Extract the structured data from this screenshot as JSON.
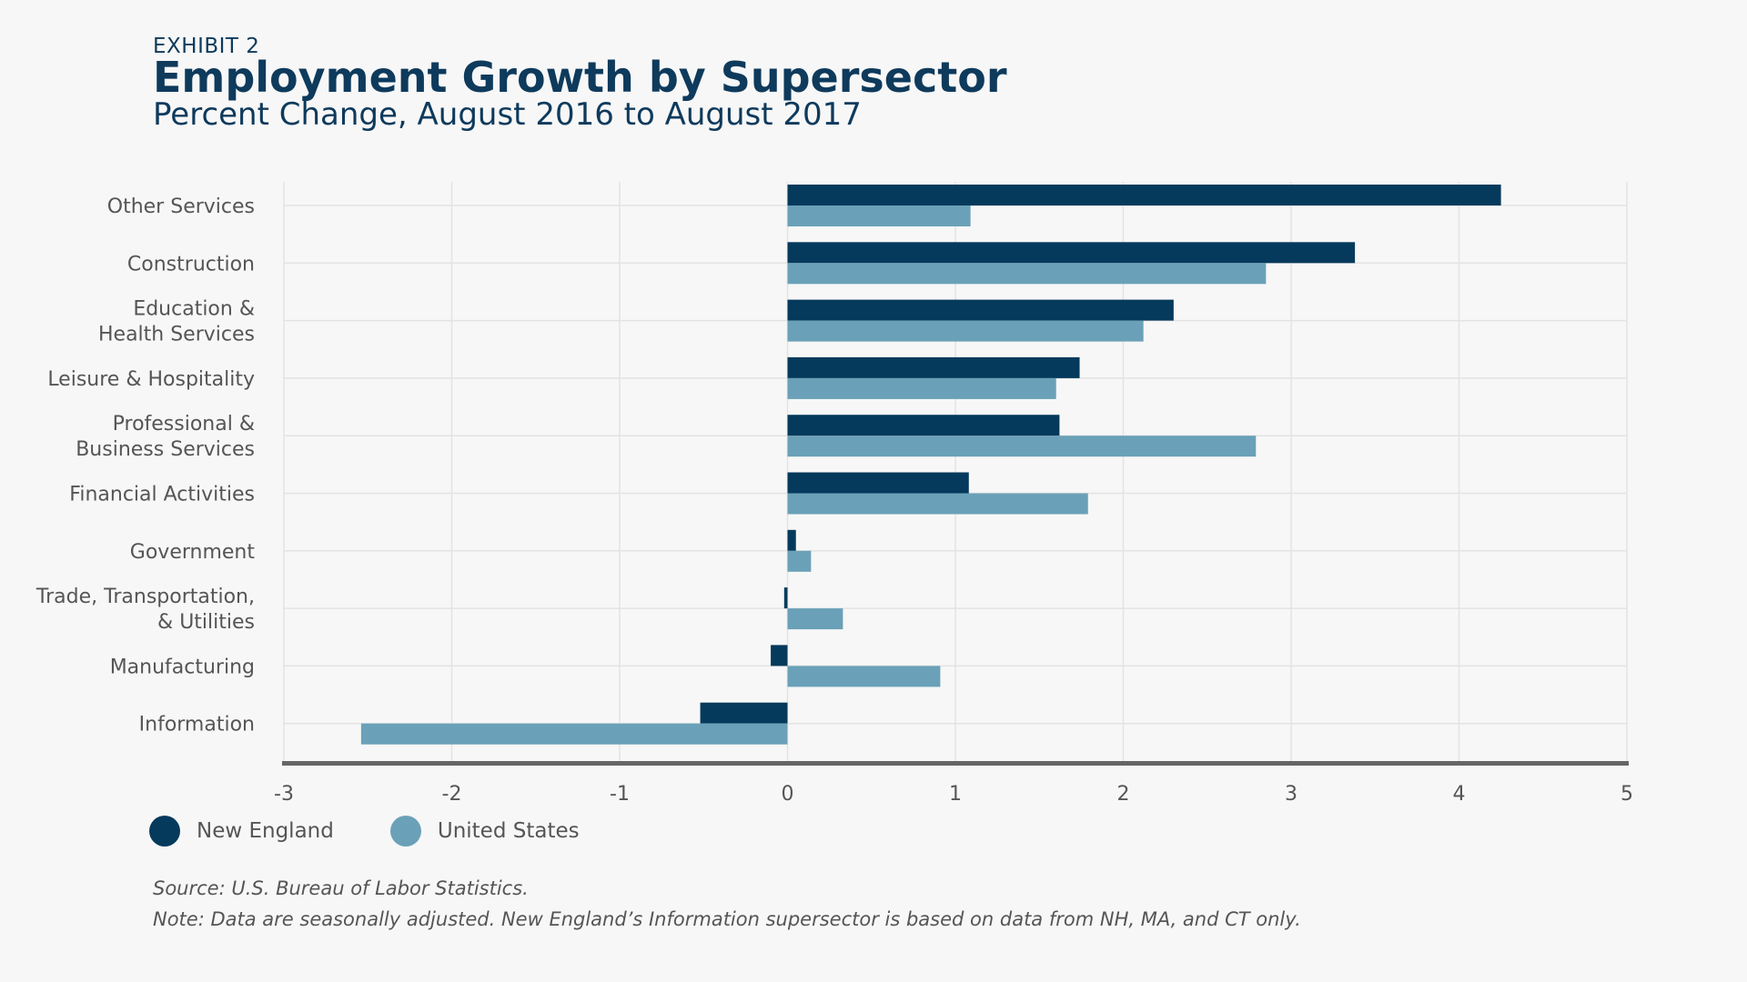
{
  "header": {
    "exhibit": "EXHIBIT 2",
    "title": "Employment Growth by Supersector",
    "subtitle": "Percent Change, August 2016 to August 2017"
  },
  "footer": {
    "source": "Source: U.S. Bureau of Labor Statistics.",
    "note": "Note: Data are seasonally adjusted. New England’s Information supersector is based on data from NH, MA, and CT only."
  },
  "colors": {
    "new_england": "#053a5c",
    "united_states": "#6aa1b8",
    "grid": "#e3e3e3",
    "axis": "#666666",
    "text": "#555555"
  },
  "chart_data": {
    "type": "bar",
    "orientation": "horizontal",
    "title": "Employment Growth by Supersector",
    "subtitle": "Percent Change, August 2016 to August 2017",
    "categories": [
      [
        "Other Services"
      ],
      [
        "Construction"
      ],
      [
        "Education &",
        "Health Services"
      ],
      [
        "Leisure & Hospitality"
      ],
      [
        "Professional &",
        "Business Services"
      ],
      [
        "Financial Activities"
      ],
      [
        "Government"
      ],
      [
        "Trade, Transportation,",
        "& Utilities"
      ],
      [
        "Manufacturing"
      ],
      [
        "Information"
      ]
    ],
    "series": [
      {
        "name": "New England",
        "color": "#053a5c",
        "values": [
          4.25,
          3.38,
          2.3,
          1.74,
          1.62,
          1.08,
          0.05,
          -0.02,
          -0.1,
          -0.52
        ]
      },
      {
        "name": "United States",
        "color": "#6aa1b8",
        "values": [
          1.09,
          2.85,
          2.12,
          1.6,
          2.79,
          1.79,
          0.14,
          0.33,
          0.91,
          -2.54
        ]
      }
    ],
    "xlim": [
      -3,
      5
    ],
    "xticks": [
      "-3",
      "-2",
      "-1",
      "0",
      "1",
      "2",
      "3",
      "4",
      "5"
    ],
    "xlabel": "",
    "ylabel": "",
    "grid": true,
    "legend_position": "bottom-left"
  }
}
